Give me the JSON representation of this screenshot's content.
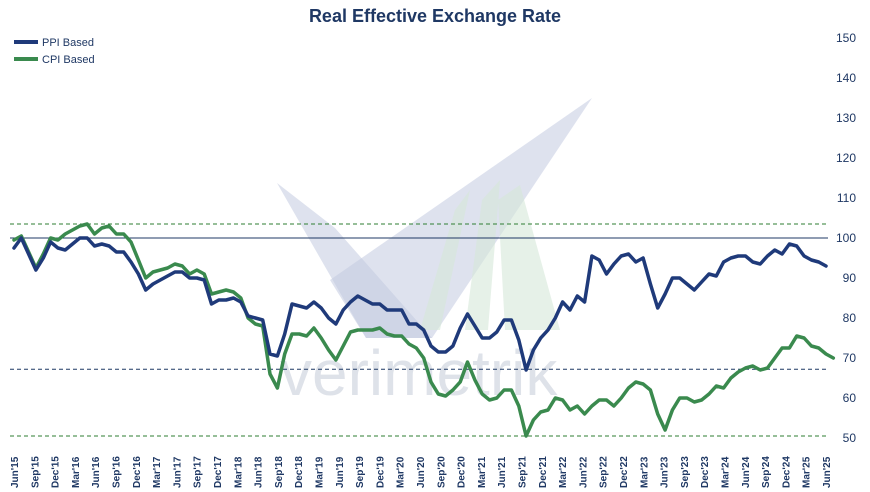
{
  "chart_data": {
    "type": "line",
    "title": "Real Effective Exchange Rate",
    "xlabel": "",
    "ylabel": "",
    "ylim": [
      50,
      150
    ],
    "yticks": [
      50,
      60,
      70,
      80,
      90,
      100,
      110,
      120,
      130,
      140,
      150
    ],
    "y_axis_side": "right",
    "legend_position": "top-left",
    "grid": false,
    "reference_lines": [
      {
        "value": 100,
        "style": "solid",
        "color": "#1f3864"
      },
      {
        "value": 103.5,
        "style": "dashed",
        "color": "#2e7d32"
      },
      {
        "value": 67.2,
        "style": "dashed",
        "color": "#1f3864"
      },
      {
        "value": 50.5,
        "style": "dashed",
        "color": "#2e7d32"
      }
    ],
    "x_tick_labels": [
      "Jun'15",
      "Sep'15",
      "Dec'15",
      "Mar'16",
      "Jun'16",
      "Sep'16",
      "Dec'16",
      "Mar'17",
      "Jun'17",
      "Sep'17",
      "Dec'17",
      "Mar'18",
      "Jun'18",
      "Sep'18",
      "Dec'18",
      "Mar'19",
      "Jun'19",
      "Sep'19",
      "Dec'19",
      "Mar'20",
      "Jun'20",
      "Sep'20",
      "Dec'20",
      "Mar'21",
      "Jun'21",
      "Sep'21",
      "Dec'21",
      "Mar'22",
      "Jun'22",
      "Sep'22",
      "Dec'22",
      "Mar'23",
      "Jun'23",
      "Sep'23",
      "Dec'23",
      "Mar'24",
      "Jun'24",
      "Sep'24",
      "Dec'24",
      "Mar'25",
      "Jun'25"
    ],
    "series": [
      {
        "name": "PPI Based",
        "color": "#1f3a7a",
        "values": [
          97.5,
          100,
          96,
          92,
          95,
          99,
          97.5,
          97,
          98.5,
          100,
          100,
          98,
          98.5,
          98,
          96.5,
          96.5,
          94,
          91,
          87,
          88.5,
          89.5,
          90.5,
          91.5,
          91.5,
          90,
          90,
          89.5,
          83.5,
          84.5,
          84.5,
          85,
          84,
          80.5,
          80,
          79.5,
          71,
          70.5,
          76,
          83.5,
          83,
          82.5,
          84,
          82.5,
          80,
          78.5,
          82,
          84,
          85.5,
          84.5,
          83.5,
          83.5,
          82,
          82,
          82,
          78.5,
          78.5,
          77,
          73,
          71.5,
          71.5,
          73,
          77.5,
          81,
          78,
          75,
          75,
          76.5,
          79.5,
          79.5,
          74.5,
          67,
          72,
          75,
          77,
          80,
          84,
          82,
          85.5,
          84,
          95.5,
          94.5,
          91,
          93.5,
          95.5,
          96,
          94,
          95,
          88.5,
          82.5,
          86,
          90,
          90,
          88.5,
          87,
          89,
          91,
          90.5,
          94,
          95,
          95.5,
          95.5,
          94,
          93.5,
          95.5,
          97,
          96,
          98.5,
          98,
          95.5,
          94.5,
          94,
          93
        ]
      },
      {
        "name": "CPI Based",
        "color": "#3a8a4e",
        "values": [
          99.5,
          100.5,
          96.5,
          92.5,
          96,
          100,
          99.5,
          101,
          102,
          103,
          103.5,
          101,
          102.5,
          103,
          101,
          101,
          99,
          94.5,
          90,
          91.5,
          92,
          92.5,
          93.5,
          93,
          91,
          92,
          91,
          86,
          86.5,
          87,
          86.5,
          85,
          80,
          78.5,
          78,
          66,
          62.5,
          71,
          76,
          76,
          75.5,
          77.5,
          75,
          72,
          69.5,
          73,
          76.5,
          77,
          77,
          77,
          77.5,
          76,
          75.5,
          75.5,
          73.5,
          72.5,
          70,
          64,
          61,
          60.5,
          62,
          64,
          69,
          64.5,
          61,
          59.5,
          60,
          62,
          62,
          58,
          50.5,
          54.5,
          56.5,
          57,
          60,
          59.5,
          57,
          58,
          56,
          58,
          59.5,
          59.5,
          58,
          60,
          62.5,
          64,
          63.5,
          62,
          56,
          52,
          57,
          60,
          60,
          59,
          59.5,
          61,
          63,
          62.5,
          65,
          66.5,
          67.5,
          68,
          67,
          67.5,
          70,
          72.5,
          72.5,
          75.5,
          75,
          73,
          72.5,
          71,
          70
        ]
      }
    ]
  },
  "watermark": "verimetrik"
}
